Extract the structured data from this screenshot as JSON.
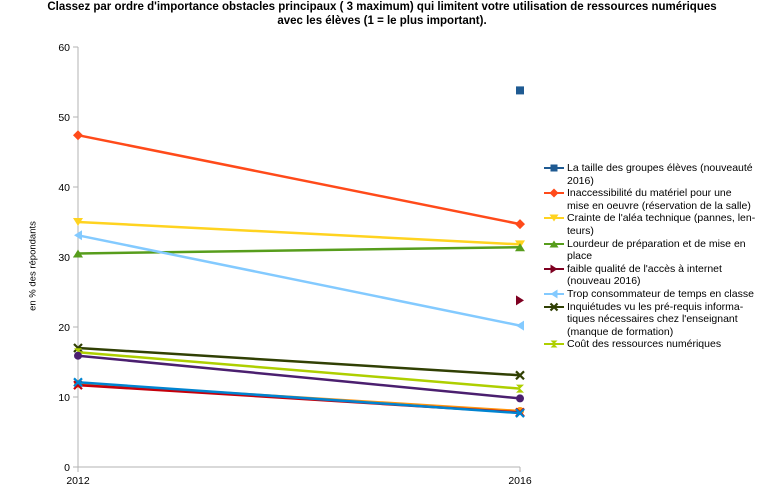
{
  "chart_data": {
    "type": "line",
    "title_lines": [
      "Classez par ordre d'importance obstacles principaux ( 3 maximum) qui limitent votre utilisation de ressources numériques",
      "avec les élèves (1 = le plus important)."
    ],
    "xlabel": "",
    "ylabel": "en % des répondants",
    "categories": [
      "2012",
      "2016"
    ],
    "ylim": [
      0,
      60
    ],
    "yticks": [
      0,
      10,
      20,
      30,
      40,
      50,
      60
    ],
    "grid": false,
    "legend_position": "right",
    "series": [
      {
        "name": "La taille des groupes élèves (nouveauté 2016)",
        "name_lines": [
          "La taille des groupes élèves (nouveauté",
          "2016)"
        ],
        "color": "#1f5a92",
        "marker": "square",
        "values": [
          null,
          53.8
        ]
      },
      {
        "name": "Inaccessibilité du matériel pour une mise en oeuvre (réservation de la salle)",
        "name_lines": [
          "Inaccessibilité du matériel pour une",
          "mise en oeuvre (réservation de la salle)"
        ],
        "color": "#ff4a1a",
        "marker": "diamond",
        "values": [
          47.4,
          34.7
        ]
      },
      {
        "name": "Crainte de l'aléa technique (pannes, lenteurs)",
        "name_lines": [
          "Crainte de l'aléa technique (pannes, len-",
          "teurs)"
        ],
        "color": "#ffd320",
        "marker": "triangle-down",
        "values": [
          35.0,
          31.8
        ]
      },
      {
        "name": "Lourdeur de préparation et de mise en place",
        "name_lines": [
          "Lourdeur de préparation et de mise en",
          "place"
        ],
        "color": "#579d1c",
        "marker": "triangle-up",
        "values": [
          30.5,
          31.4
        ]
      },
      {
        "name": "faible qualité de l'accès à internet (nouveau 2016)",
        "name_lines": [
          "faible qualité de l'accès à internet",
          "(nouveau 2016)"
        ],
        "color": "#7e0021",
        "marker": "triangle-right",
        "values": [
          null,
          23.8
        ]
      },
      {
        "name": "Trop consommateur de temps en classe",
        "name_lines": [
          "Trop consommateur de temps en classe"
        ],
        "color": "#83caff",
        "marker": "triangle-left",
        "values": [
          33.1,
          20.2
        ]
      },
      {
        "name": "Inquiétudes vu les pré-requis informatiques nécessaires chez l'enseignant (manque de formation)",
        "name_lines": [
          "Inquiétudes vu les pré-requis informa-",
          "tiques nécessaires chez l'enseignant",
          "(manque de formation)"
        ],
        "color": "#314004",
        "marker": "x",
        "values": [
          17.0,
          13.1
        ]
      },
      {
        "name": "Coût des ressources numériques",
        "name_lines": [
          "Coût des ressources numériques"
        ],
        "color": "#aecf00",
        "marker": "hourglass",
        "values": [
          16.4,
          11.2
        ]
      },
      {
        "name": "",
        "color": "#4b1f6f",
        "marker": "circle",
        "values": [
          15.9,
          9.8
        ]
      },
      {
        "name": "",
        "color": "#ff950e",
        "marker": "circle",
        "values": [
          11.9,
          8.0
        ]
      },
      {
        "name": "",
        "color": "#c5000b",
        "marker": "x",
        "values": [
          11.7,
          7.8
        ]
      },
      {
        "name": "",
        "color": "#0084d1",
        "marker": "x",
        "values": [
          12.1,
          7.7
        ]
      }
    ]
  }
}
